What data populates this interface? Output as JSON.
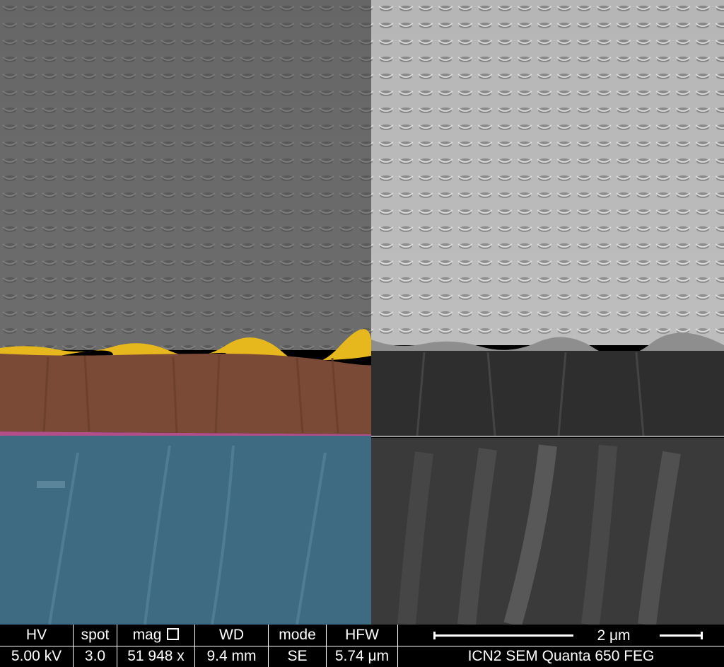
{
  "info_bar": {
    "fields": [
      {
        "label": "HV",
        "value": "5.00 kV"
      },
      {
        "label": "spot",
        "value": "3.0"
      },
      {
        "label": "mag",
        "value": "51 948 x"
      },
      {
        "label": "WD",
        "value": "9.4 mm"
      },
      {
        "label": "mode",
        "value": "SE"
      },
      {
        "label": "HFW",
        "value": "5.74 μm"
      }
    ],
    "mag_icon": "square-frame-icon",
    "scale_bar_label": "2 μm",
    "instrument": "ICN2 SEM Quanta 650 FEG"
  },
  "colors": {
    "gold_layer": "#e8b820",
    "brown_layer": "#7a4a34",
    "blue_substrate": "#3e6a80",
    "magenta_interface": "#b8508c",
    "textured_top_gray": "#6e6e6e",
    "textured_top_bright": "#b4b4b4"
  }
}
